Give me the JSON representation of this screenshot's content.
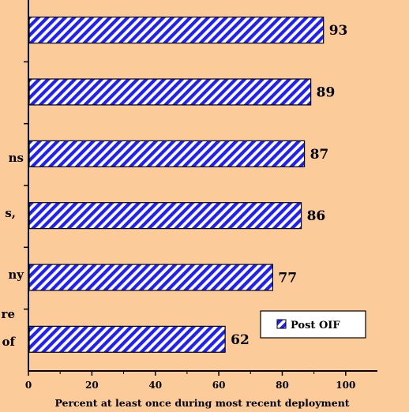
{
  "chart_data": {
    "type": "bar",
    "orientation": "horizontal",
    "categories": [
      "",
      "",
      "",
      "",
      "",
      ""
    ],
    "category_label_fragments": [
      "",
      "",
      "ns",
      "s,",
      "ny",
      "re",
      "of"
    ],
    "series": [
      {
        "name": "Post OIF",
        "values": [
          93,
          89,
          87,
          86,
          77,
          62
        ]
      }
    ],
    "data_labels": [
      "93",
      "89",
      "87",
      "86",
      "77",
      "62"
    ],
    "xlabel": "Percent at least once during most recent deployment",
    "xlim": [
      0,
      110
    ],
    "xticks": [
      0,
      20,
      40,
      60,
      80,
      100
    ],
    "xtick_labels": [
      "0",
      "20",
      "40",
      "60",
      "80",
      "100"
    ],
    "legend": {
      "position": "bottom-right",
      "entries": [
        "Post OIF"
      ]
    },
    "grid": false,
    "colors": {
      "background": "#FBCB9A",
      "bar_stripe": "#1E1EFF",
      "bar_fill": "#FFFFFF",
      "axis": "#000000"
    }
  }
}
